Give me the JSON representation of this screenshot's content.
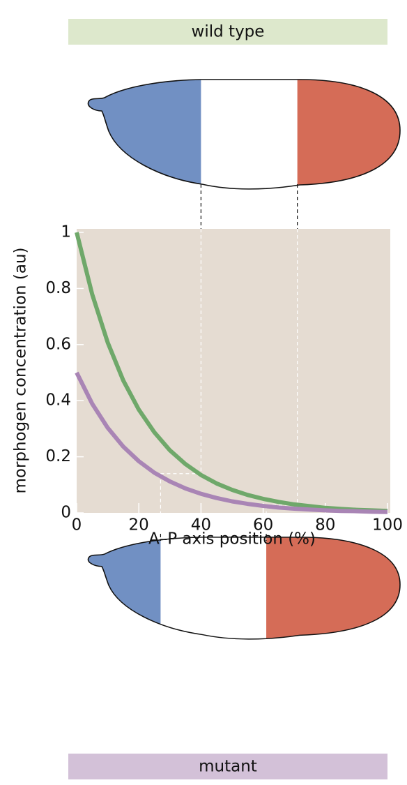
{
  "labels": {
    "top": "wild type",
    "bottom": "mutant"
  },
  "chart_data": {
    "type": "line",
    "xlabel": "A–P axis position (%)",
    "ylabel": "morphogen concentration (au)",
    "x": [
      0,
      5,
      10,
      15,
      20,
      25,
      30,
      35,
      40,
      45,
      50,
      55,
      60,
      65,
      70,
      75,
      80,
      85,
      90,
      95,
      100
    ],
    "series": [
      {
        "color": "#6fa86a",
        "values": [
          1,
          0.779,
          0.607,
          0.472,
          0.368,
          0.287,
          0.223,
          0.174,
          0.135,
          0.105,
          0.082,
          0.064,
          0.05,
          0.039,
          0.03,
          0.024,
          0.018,
          0.014,
          0.011,
          0.009,
          0.007
        ]
      },
      {
        "color": "#a985b5",
        "values": [
          0.5,
          0.389,
          0.303,
          0.236,
          0.184,
          0.143,
          0.112,
          0.087,
          0.068,
          0.053,
          0.041,
          0.032,
          0.025,
          0.019,
          0.015,
          0.012,
          0.009,
          0.007,
          0.006,
          0.004,
          0.003
        ]
      }
    ],
    "xlim": [
      0,
      100
    ],
    "xticks": [
      0,
      20,
      40,
      60,
      80,
      100
    ],
    "ylim": [
      0,
      1
    ],
    "yticks": [
      0,
      0.2,
      0.4,
      0.6,
      0.8,
      1
    ],
    "background": "#e5dcd2",
    "wild_type_boundaries": [
      40,
      71
    ],
    "mutant_boundaries": [
      27,
      61
    ],
    "thresholds": [
      0.14,
      0.028
    ],
    "anterior_color": "#7190c3",
    "posterior_color": "#d56c57"
  }
}
